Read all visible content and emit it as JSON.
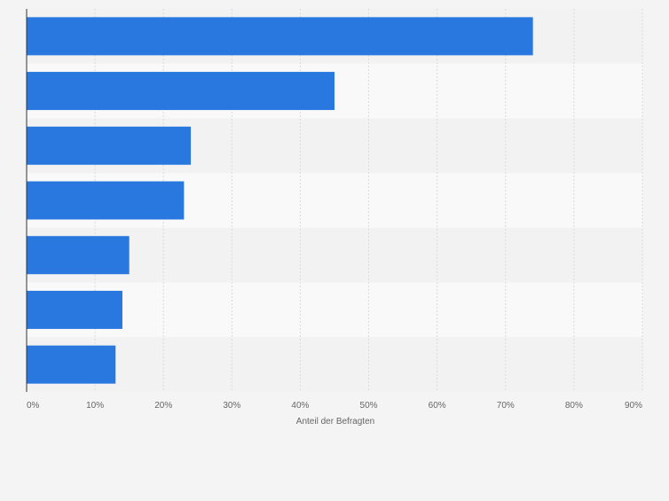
{
  "chart_data": {
    "type": "bar",
    "orientation": "horizontal",
    "title": "",
    "categories": [
      "",
      "",
      "",
      "",
      "",
      "",
      ""
    ],
    "values": [
      74,
      45,
      24,
      23,
      15,
      14,
      13
    ],
    "unit": "%",
    "xlabel": "Anteil der Befragten",
    "ylabel": "",
    "xlim": [
      0,
      90
    ],
    "xticks": [
      "0%",
      "10%",
      "20%",
      "30%",
      "40%",
      "50%",
      "60%",
      "70%",
      "80%",
      "90%"
    ],
    "grid": true,
    "legend": "none",
    "colors": {
      "bar": "#2878e0",
      "band_light": "#f9f9f9",
      "band_dark": "#f2f2f2",
      "grid": "#dadada",
      "axis": "#333333",
      "text": "#666666",
      "background": "#f4f4f4"
    }
  }
}
